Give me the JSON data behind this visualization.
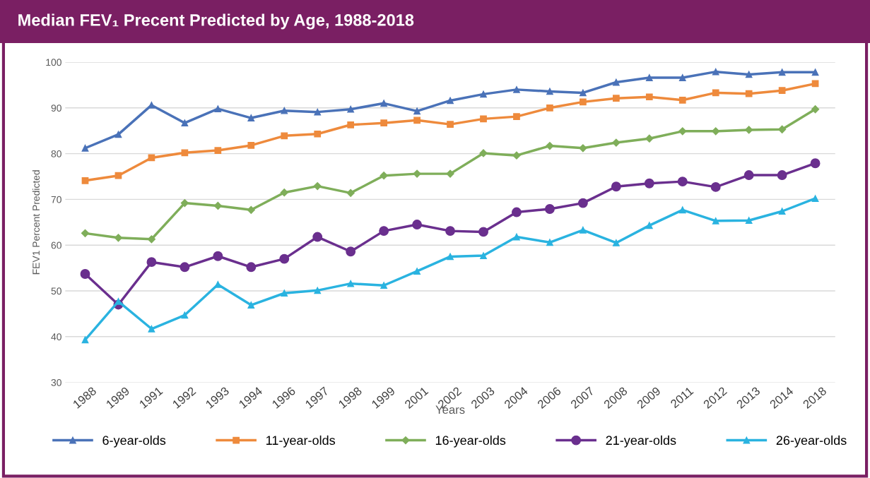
{
  "chart_data": {
    "type": "line",
    "title": "Median FEV₁ Precent Predicted by Age, 1988-2018",
    "xlabel": "Years",
    "ylabel": "FEV1 Percent Predicted",
    "categories": [
      "1988",
      "1989",
      "1991",
      "1992",
      "1993",
      "1994",
      "1996",
      "1997",
      "1998",
      "1999",
      "2001",
      "2002",
      "2003",
      "2004",
      "2006",
      "2007",
      "2008",
      "2009",
      "2011",
      "2012",
      "2013",
      "2014",
      "2018"
    ],
    "series": [
      {
        "name": "6-year-olds",
        "color": "#4a72b8",
        "marker": "triangle",
        "values": [
          81.2,
          84.2,
          90.6,
          86.7,
          89.8,
          87.8,
          89.4,
          89.1,
          89.7,
          91.0,
          89.3,
          91.6,
          93.0,
          94.0,
          93.6,
          93.3,
          95.6,
          96.6,
          96.6,
          97.9,
          97.3,
          97.8,
          97.8
        ]
      },
      {
        "name": "11-year-olds",
        "color": "#ee8a3c",
        "marker": "square",
        "values": [
          74.1,
          75.2,
          79.1,
          80.2,
          80.7,
          81.8,
          83.9,
          84.3,
          86.3,
          86.7,
          87.3,
          86.4,
          87.6,
          88.1,
          90.0,
          91.3,
          92.1,
          92.4,
          91.7,
          93.3,
          93.1,
          93.8,
          95.3
        ]
      },
      {
        "name": "16-year-olds",
        "color": "#7fae5a",
        "marker": "diamond",
        "values": [
          62.6,
          61.6,
          61.3,
          69.2,
          68.6,
          67.7,
          71.5,
          72.9,
          71.4,
          75.2,
          75.6,
          75.6,
          80.1,
          79.6,
          81.7,
          81.2,
          82.4,
          83.3,
          84.9,
          84.9,
          85.2,
          85.3,
          89.7
        ]
      },
      {
        "name": "21-year-olds",
        "color": "#6a2f8e",
        "marker": "circle",
        "values": [
          53.7,
          47.0,
          56.3,
          55.2,
          57.6,
          55.2,
          57.0,
          61.8,
          58.6,
          63.1,
          64.5,
          63.1,
          62.9,
          67.2,
          67.9,
          69.2,
          72.8,
          73.5,
          73.9,
          72.7,
          75.3,
          75.3,
          77.9
        ]
      },
      {
        "name": "26-year-olds",
        "color": "#2ab3e0",
        "marker": "triangle",
        "values": [
          39.3,
          47.7,
          41.7,
          44.7,
          51.4,
          46.9,
          49.5,
          50.1,
          51.6,
          51.2,
          54.3,
          57.5,
          57.7,
          61.8,
          60.6,
          63.3,
          60.5,
          64.3,
          67.7,
          65.3,
          65.4,
          67.4,
          70.2
        ]
      }
    ],
    "ylim": [
      30,
      100
    ],
    "yticks": [
      30,
      40,
      50,
      60,
      70,
      80,
      90,
      100
    ],
    "grid": "y",
    "legend": "bottom",
    "line_style": "solid"
  }
}
